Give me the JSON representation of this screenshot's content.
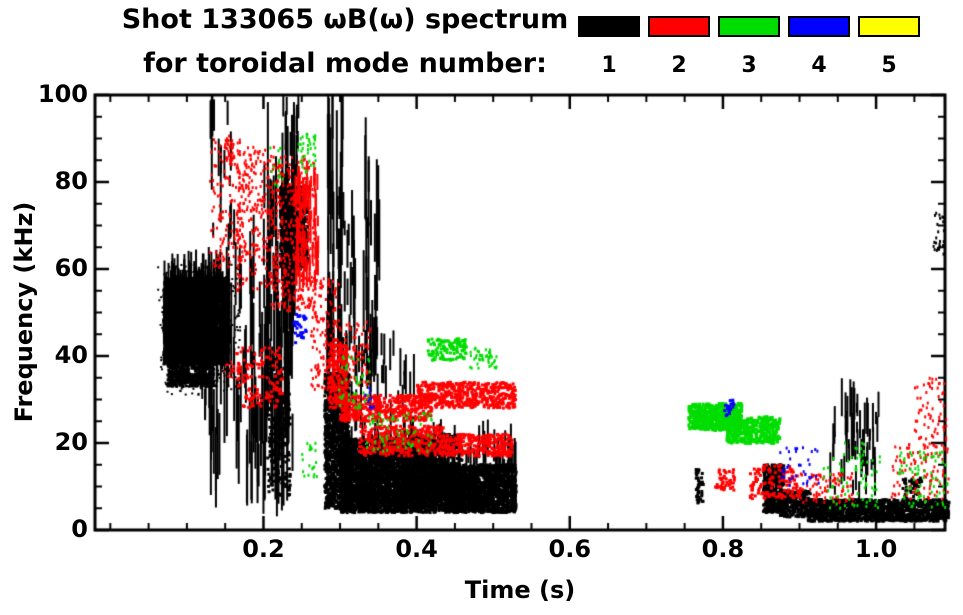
{
  "chart_data": {
    "type": "scatter",
    "title": "Shot 133065 ωB(ω) spectrum",
    "subtitle": "for toroidal mode number:",
    "xlabel": "Time (s)",
    "ylabel": "Frequency (kHz)",
    "xlim": [
      -0.02,
      1.09
    ],
    "ylim": [
      0,
      100
    ],
    "grid": false,
    "legend_position": "top-right",
    "xticks": {
      "values": [
        0.2,
        0.4,
        0.6,
        0.8,
        1.0
      ],
      "labels": [
        "0.2",
        "0.4",
        "0.6",
        "0.8",
        "1.0"
      ],
      "minor_step": 0.05
    },
    "yticks": {
      "values": [
        0,
        20,
        40,
        60,
        80,
        100
      ],
      "labels": [
        "0",
        "20",
        "40",
        "60",
        "80",
        "100"
      ],
      "minor_step": 5
    },
    "legend": [
      {
        "label": "1",
        "color": "#000000"
      },
      {
        "label": "2",
        "color": "#ff0000"
      },
      {
        "label": "3",
        "color": "#00dd00"
      },
      {
        "label": "4",
        "color": "#0000ff"
      },
      {
        "label": "5",
        "color": "#ffff00"
      }
    ],
    "series": [
      {
        "name": "n=1",
        "mode_number": 1,
        "color": "#000000",
        "clusters": [
          {
            "t": [
              0.07,
              0.155
            ],
            "f": [
              38,
              58
            ],
            "n": 2600,
            "kind": "dot",
            "w": 3,
            "h": 3
          },
          {
            "t": [
              0.075,
              0.135
            ],
            "f": [
              33,
              48
            ],
            "n": 1100,
            "kind": "dot",
            "w": 3,
            "h": 3
          },
          {
            "t": [
              0.062,
              0.17
            ],
            "f": [
              31,
              61
            ],
            "n": 380,
            "kind": "dot",
            "w": 2,
            "h": 2
          },
          {
            "t": [
              0.07,
              0.155
            ],
            "f": [
              37,
              57
            ],
            "n": 420,
            "kind": "vline",
            "w": 2,
            "len": [
              2,
              9
            ]
          },
          {
            "t": [
              0.118,
              0.205
            ],
            "f": [
              5,
              55
            ],
            "n": 80,
            "kind": "vline",
            "w": 2,
            "len": [
              4,
              22
            ]
          },
          {
            "t": [
              0.128,
              0.162
            ],
            "f": [
              58,
              95
            ],
            "n": 22,
            "kind": "vline",
            "w": 2,
            "len": [
              2,
              14
            ]
          },
          {
            "t": [
              0.198,
              0.242
            ],
            "f": [
              3,
              75
            ],
            "n": 95,
            "kind": "vline",
            "w": 2,
            "len": [
              6,
              34
            ]
          },
          {
            "t": [
              0.205,
              0.235
            ],
            "f": [
              8,
              40
            ],
            "n": 260,
            "kind": "dot",
            "w": 3,
            "h": 3
          },
          {
            "t": [
              0.222,
              0.258
            ],
            "f": [
              60,
              79
            ],
            "n": 650,
            "kind": "dot",
            "w": 3,
            "h": 4
          },
          {
            "t": [
              0.225,
              0.247
            ],
            "f": [
              75,
              96
            ],
            "n": 14,
            "kind": "vline",
            "w": 2,
            "len": [
              2,
              10
            ]
          },
          {
            "t": [
              0.28,
              0.312
            ],
            "f": [
              5,
              36
            ],
            "n": 1400,
            "kind": "dot",
            "w": 3,
            "h": 3
          },
          {
            "t": [
              0.283,
              0.305
            ],
            "f": [
              30,
              92
            ],
            "n": 45,
            "kind": "vline",
            "w": 2,
            "len": [
              4,
              30
            ]
          },
          {
            "t": [
              0.305,
              0.325
            ],
            "f": [
              25,
              70
            ],
            "n": 18,
            "kind": "vline",
            "w": 2,
            "len": [
              3,
              20
            ]
          },
          {
            "t": [
              0.3,
              0.425
            ],
            "f": [
              4,
              21
            ],
            "n": 3200,
            "kind": "dot",
            "w": 3,
            "h": 3
          },
          {
            "t": [
              0.33,
              0.352
            ],
            "f": [
              22,
              80
            ],
            "n": 28,
            "kind": "vline",
            "w": 2,
            "len": [
              4,
              26
            ]
          },
          {
            "t": [
              0.3,
              0.4
            ],
            "f": [
              20,
              42
            ],
            "n": 55,
            "kind": "vline",
            "w": 2,
            "len": [
              2,
              10
            ]
          },
          {
            "t": [
              0.39,
              0.46
            ],
            "f": [
              7,
              22
            ],
            "n": 700,
            "kind": "dot",
            "w": 3,
            "h": 3
          },
          {
            "t": [
              0.42,
              0.53
            ],
            "f": [
              4,
              15
            ],
            "n": 1900,
            "kind": "dot",
            "w": 3,
            "h": 3
          },
          {
            "t": [
              0.3,
              0.53
            ],
            "f": [
              4,
              18
            ],
            "n": 300,
            "kind": "vline",
            "w": 2,
            "len": [
              2,
              8
            ]
          },
          {
            "t": [
              0.765,
              0.775
            ],
            "f": [
              6,
              14
            ],
            "n": 45,
            "kind": "dot",
            "w": 3,
            "h": 3
          },
          {
            "t": [
              0.853,
              0.88
            ],
            "f": [
              4,
              15
            ],
            "n": 420,
            "kind": "dot",
            "w": 3,
            "h": 3
          },
          {
            "t": [
              0.875,
              0.915
            ],
            "f": [
              3,
              9
            ],
            "n": 260,
            "kind": "dot",
            "w": 3,
            "h": 3
          },
          {
            "t": [
              0.91,
              1.095
            ],
            "f": [
              2,
              7
            ],
            "n": 1500,
            "kind": "dot",
            "w": 3,
            "h": 3
          },
          {
            "t": [
              0.94,
              1.005
            ],
            "f": [
              7,
              27
            ],
            "n": 55,
            "kind": "vline",
            "w": 2,
            "len": [
              2,
              9
            ]
          },
          {
            "t": [
              1.035,
              1.06
            ],
            "f": [
              6,
              12
            ],
            "n": 60,
            "kind": "dot",
            "w": 3,
            "h": 3
          },
          {
            "t": [
              1.075,
              1.09
            ],
            "f": [
              63,
              73
            ],
            "n": 25,
            "kind": "dot",
            "w": 2,
            "h": 3
          }
        ]
      },
      {
        "name": "n=2",
        "mode_number": 2,
        "color": "#ff0000",
        "clusters": [
          {
            "t": [
              0.13,
              0.17
            ],
            "f": [
              60,
              90
            ],
            "n": 130,
            "kind": "dot",
            "w": 2,
            "h": 3
          },
          {
            "t": [
              0.15,
              0.162
            ],
            "f": [
              84,
              91
            ],
            "n": 40,
            "kind": "dot",
            "w": 2,
            "h": 3
          },
          {
            "t": [
              0.165,
              0.215
            ],
            "f": [
              55,
              88
            ],
            "n": 260,
            "kind": "dot",
            "w": 2,
            "h": 3
          },
          {
            "t": [
              0.21,
              0.268
            ],
            "f": [
              50,
              86
            ],
            "n": 380,
            "kind": "dot",
            "w": 2,
            "h": 3
          },
          {
            "t": [
              0.24,
              0.272
            ],
            "f": [
              55,
              80
            ],
            "n": 70,
            "kind": "vline",
            "w": 2,
            "len": [
              2,
              7
            ]
          },
          {
            "t": [
              0.262,
              0.3
            ],
            "f": [
              32,
              58
            ],
            "n": 160,
            "kind": "dot",
            "w": 2,
            "h": 3
          },
          {
            "t": [
              0.165,
              0.225
            ],
            "f": [
              28,
              42
            ],
            "n": 130,
            "kind": "dot",
            "w": 3,
            "h": 3
          },
          {
            "t": [
              0.148,
              0.162
            ],
            "f": [
              35,
              39
            ],
            "n": 18,
            "kind": "dot",
            "w": 2,
            "h": 2
          },
          {
            "t": [
              0.285,
              0.31
            ],
            "f": [
              28,
              43
            ],
            "n": 220,
            "kind": "dot",
            "w": 3,
            "h": 3
          },
          {
            "t": [
              0.3,
              0.34
            ],
            "f": [
              33,
              48
            ],
            "n": 90,
            "kind": "dot",
            "w": 2,
            "h": 3
          },
          {
            "t": [
              0.3,
              0.42
            ],
            "f": [
              25,
              31
            ],
            "n": 450,
            "kind": "dot",
            "w": 3,
            "h": 3
          },
          {
            "t": [
              0.4,
              0.53
            ],
            "f": [
              28,
              34
            ],
            "n": 480,
            "kind": "dot",
            "w": 3,
            "h": 3
          },
          {
            "t": [
              0.325,
              0.435
            ],
            "f": [
              17,
              24
            ],
            "n": 380,
            "kind": "dot",
            "w": 3,
            "h": 3
          },
          {
            "t": [
              0.43,
              0.525
            ],
            "f": [
              17,
              22
            ],
            "n": 320,
            "kind": "dot",
            "w": 3,
            "h": 3
          },
          {
            "t": [
              0.79,
              0.815
            ],
            "f": [
              9,
              14
            ],
            "n": 45,
            "kind": "dot",
            "w": 3,
            "h": 3
          },
          {
            "t": [
              0.835,
              0.9
            ],
            "f": [
              7,
              15
            ],
            "n": 130,
            "kind": "dot",
            "w": 3,
            "h": 3
          },
          {
            "t": [
              0.9,
              0.97
            ],
            "f": [
              6,
              13
            ],
            "n": 90,
            "kind": "dot",
            "w": 2,
            "h": 3
          },
          {
            "t": [
              1.02,
              1.095
            ],
            "f": [
              7,
              20
            ],
            "n": 110,
            "kind": "dot",
            "w": 2,
            "h": 3
          },
          {
            "t": [
              1.05,
              1.092
            ],
            "f": [
              20,
              35
            ],
            "n": 60,
            "kind": "dot",
            "w": 2,
            "h": 3
          }
        ]
      },
      {
        "name": "n=3",
        "mode_number": 3,
        "color": "#00dd00",
        "clusters": [
          {
            "t": [
              0.755,
              0.825
            ],
            "f": [
              23,
              29
            ],
            "n": 420,
            "kind": "dot",
            "w": 3,
            "h": 4
          },
          {
            "t": [
              0.805,
              0.875
            ],
            "f": [
              20,
              26
            ],
            "n": 330,
            "kind": "dot",
            "w": 3,
            "h": 4
          },
          {
            "t": [
              0.245,
              0.268
            ],
            "f": [
              82,
              91
            ],
            "n": 40,
            "kind": "dot",
            "w": 2,
            "h": 3
          },
          {
            "t": [
              0.208,
              0.225
            ],
            "f": [
              79,
              88
            ],
            "n": 14,
            "kind": "dot",
            "w": 2,
            "h": 3
          },
          {
            "t": [
              0.415,
              0.465
            ],
            "f": [
              39,
              44
            ],
            "n": 110,
            "kind": "dot",
            "w": 3,
            "h": 3
          },
          {
            "t": [
              0.47,
              0.505
            ],
            "f": [
              37,
              42
            ],
            "n": 45,
            "kind": "dot",
            "w": 2,
            "h": 3
          },
          {
            "t": [
              0.33,
              0.42
            ],
            "f": [
              18,
              27
            ],
            "n": 70,
            "kind": "dot",
            "w": 2,
            "h": 3
          },
          {
            "t": [
              0.295,
              0.34
            ],
            "f": [
              27,
              40
            ],
            "n": 45,
            "kind": "dot",
            "w": 2,
            "h": 3
          },
          {
            "t": [
              0.25,
              0.27
            ],
            "f": [
              12,
              20
            ],
            "n": 22,
            "kind": "dot",
            "w": 2,
            "h": 3
          },
          {
            "t": [
              0.93,
              1.005
            ],
            "f": [
              5,
              17
            ],
            "n": 60,
            "kind": "dot",
            "w": 2,
            "h": 3
          },
          {
            "t": [
              1.03,
              1.095
            ],
            "f": [
              5,
              18
            ],
            "n": 75,
            "kind": "dot",
            "w": 2,
            "h": 3
          },
          {
            "t": [
              0.955,
              0.985
            ],
            "f": [
              13,
              20
            ],
            "n": 18,
            "kind": "dot",
            "w": 2,
            "h": 3
          }
        ]
      },
      {
        "name": "n=4",
        "mode_number": 4,
        "color": "#0000ff",
        "clusters": [
          {
            "t": [
              0.24,
              0.256
            ],
            "f": [
              43,
              50
            ],
            "n": 30,
            "kind": "dot",
            "w": 3,
            "h": 3
          },
          {
            "t": [
              0.8,
              0.815
            ],
            "f": [
              26,
              30
            ],
            "n": 18,
            "kind": "dot",
            "w": 3,
            "h": 3
          },
          {
            "t": [
              0.873,
              0.925
            ],
            "f": [
              10,
              19
            ],
            "n": 35,
            "kind": "dot",
            "w": 2,
            "h": 3
          },
          {
            "t": [
              0.332,
              0.345
            ],
            "f": [
              28,
              33
            ],
            "n": 10,
            "kind": "dot",
            "w": 2,
            "h": 3
          }
        ]
      },
      {
        "name": "n=5",
        "mode_number": 5,
        "color": "#ffff00",
        "clusters": []
      }
    ]
  }
}
